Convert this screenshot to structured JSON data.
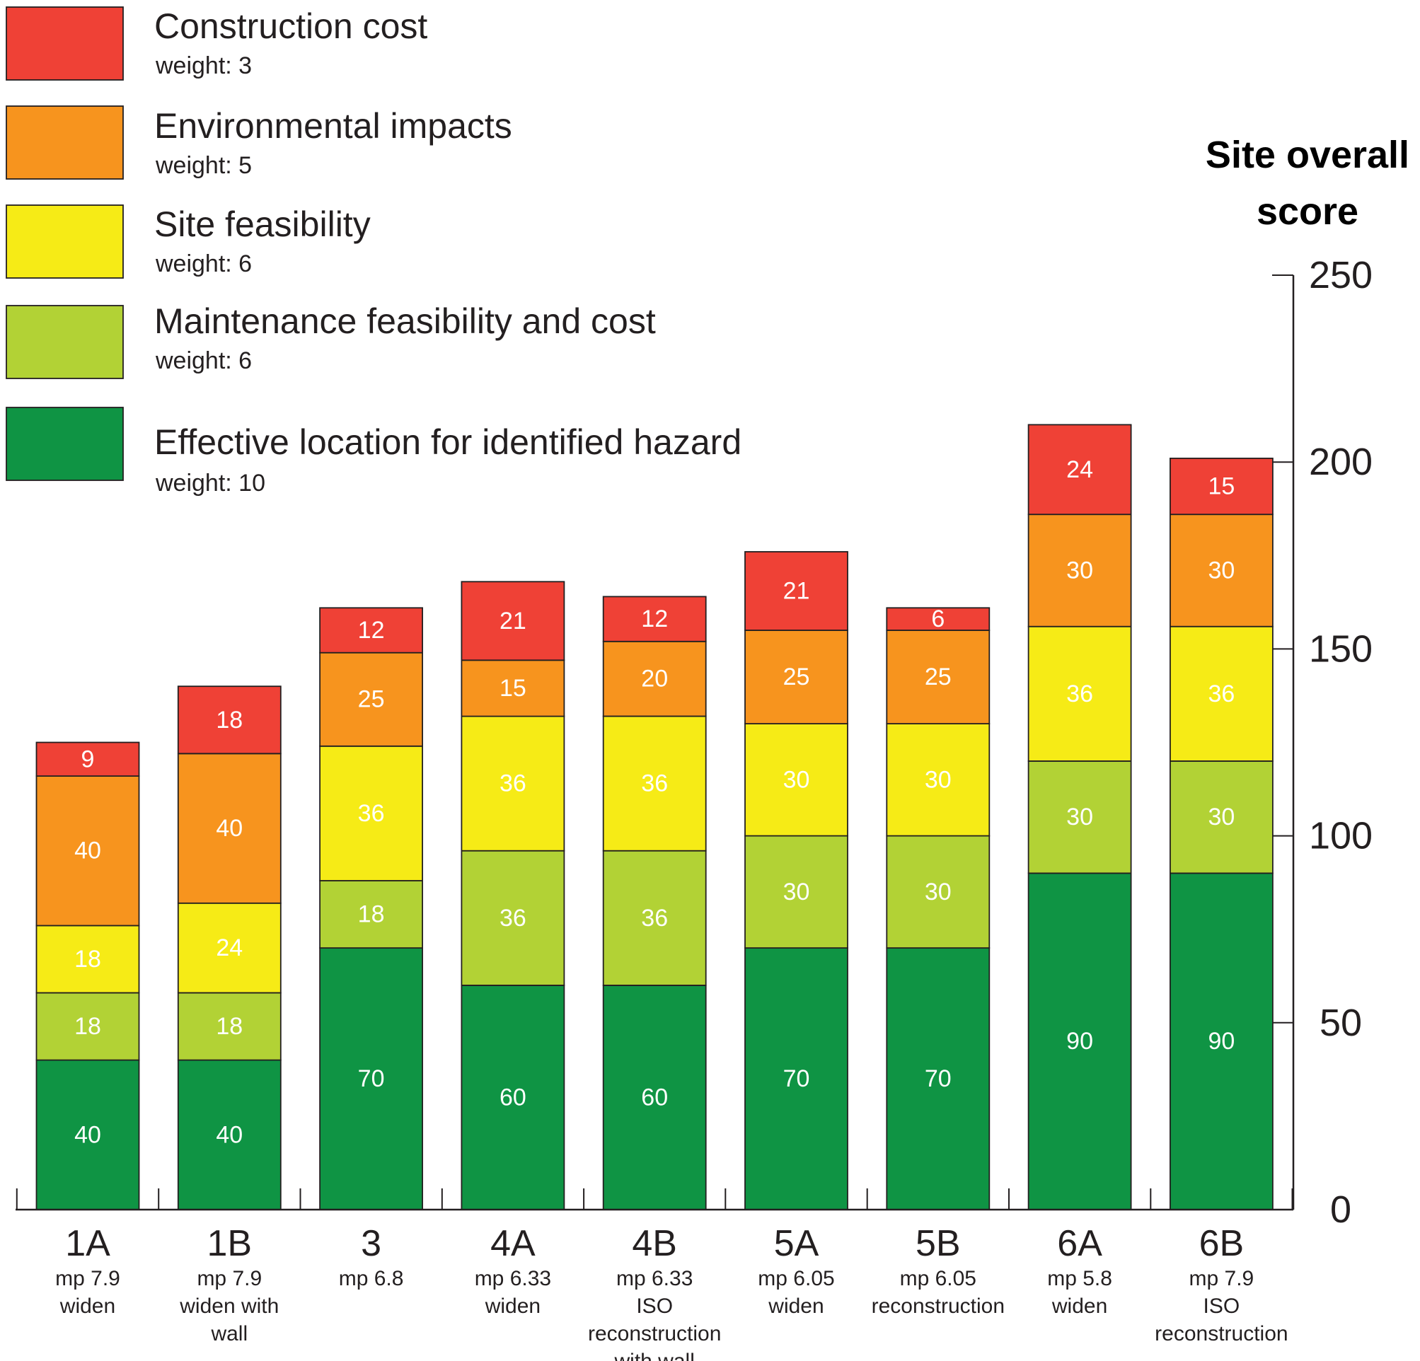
{
  "chart_data": {
    "type": "bar",
    "stacked": true,
    "ylabel_lines": [
      "Site overall",
      "score"
    ],
    "ylim": [
      0,
      250
    ],
    "yticks": [
      0,
      50,
      100,
      150,
      200,
      250
    ],
    "y_axis_side": "right",
    "legend_position": "top-left",
    "categories": [
      {
        "name": "1A",
        "sub": [
          "mp 7.9",
          "widen"
        ]
      },
      {
        "name": "1B",
        "sub": [
          "mp 7.9",
          "widen with",
          "wall"
        ]
      },
      {
        "name": "3",
        "sub": [
          "mp 6.8"
        ]
      },
      {
        "name": "4A",
        "sub": [
          "mp 6.33",
          "widen"
        ]
      },
      {
        "name": "4B",
        "sub": [
          "mp 6.33",
          "ISO",
          "reconstruction",
          "with wall"
        ]
      },
      {
        "name": "5A",
        "sub": [
          "mp 6.05",
          "widen"
        ]
      },
      {
        "name": "5B",
        "sub": [
          "mp 6.05",
          "reconstruction"
        ]
      },
      {
        "name": "6A",
        "sub": [
          "mp 5.8",
          "widen"
        ]
      },
      {
        "name": "6B",
        "sub": [
          "mp 7.9",
          "ISO",
          "reconstruction"
        ]
      }
    ],
    "series": [
      {
        "name": "Effective location for identified hazard",
        "weight_label": "weight: 10",
        "color": "#0f9444",
        "values": [
          40,
          40,
          70,
          60,
          60,
          70,
          70,
          90,
          90
        ]
      },
      {
        "name": "Maintenance feasibility and cost",
        "weight_label": "weight: 6",
        "color": "#b2d235",
        "values": [
          18,
          18,
          18,
          36,
          36,
          30,
          30,
          30,
          30
        ]
      },
      {
        "name": "Site feasibility",
        "weight_label": "weight: 6",
        "color": "#f6eb16",
        "values": [
          18,
          24,
          36,
          36,
          36,
          30,
          30,
          36,
          36
        ]
      },
      {
        "name": "Environmental impacts",
        "weight_label": "weight: 5",
        "color": "#f7941e",
        "values": [
          40,
          40,
          25,
          15,
          20,
          25,
          25,
          30,
          30
        ]
      },
      {
        "name": "Construction cost",
        "weight_label": "weight: 3",
        "color": "#ef4136",
        "values": [
          9,
          18,
          12,
          21,
          12,
          21,
          6,
          24,
          15
        ]
      }
    ],
    "legend_order": [
      4,
      3,
      2,
      1,
      0
    ]
  }
}
